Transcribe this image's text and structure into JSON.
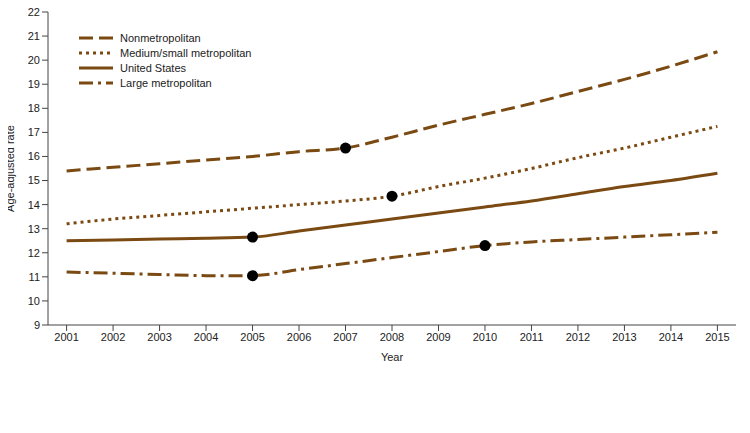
{
  "chart_data": {
    "type": "line",
    "x_label": "Year",
    "y_label": "Age-adjusted rate",
    "x": [
      2001,
      2002,
      2003,
      2004,
      2005,
      2006,
      2007,
      2008,
      2009,
      2010,
      2011,
      2012,
      2013,
      2014,
      2015
    ],
    "xlim": [
      2000.6,
      2015.4
    ],
    "xticks": [
      2001,
      2002,
      2003,
      2004,
      2005,
      2006,
      2007,
      2008,
      2009,
      2010,
      2011,
      2012,
      2013,
      2014,
      2015
    ],
    "ylim": [
      9,
      22
    ],
    "yticks": [
      9,
      10,
      11,
      12,
      13,
      14,
      15,
      16,
      17,
      18,
      19,
      20,
      21,
      22
    ],
    "grid": false,
    "legend": "upper left",
    "series": [
      {
        "name": "Nonmetropolitan",
        "color": "#7a4a12",
        "line_style": "dashed",
        "joinpoints": [
          2007
        ],
        "values": [
          15.4,
          15.55,
          15.7,
          15.85,
          16.0,
          16.2,
          16.35,
          16.8,
          17.3,
          17.75,
          18.2,
          18.7,
          19.2,
          19.75,
          20.35
        ]
      },
      {
        "name": "Medium/small metropolitan",
        "color": "#7a4a12",
        "line_style": "dotted",
        "joinpoints": [
          2008
        ],
        "values": [
          13.2,
          13.4,
          13.55,
          13.7,
          13.85,
          14.0,
          14.15,
          14.35,
          14.75,
          15.1,
          15.5,
          15.95,
          16.35,
          16.8,
          17.25
        ]
      },
      {
        "name": "United States",
        "color": "#7a4a12",
        "line_style": "solid",
        "joinpoints": [
          2005
        ],
        "values": [
          12.5,
          12.53,
          12.57,
          12.6,
          12.65,
          12.9,
          13.15,
          13.4,
          13.65,
          13.9,
          14.15,
          14.45,
          14.75,
          15.0,
          15.3
        ]
      },
      {
        "name": "Large metropolitan",
        "color": "#7a4a12",
        "line_style": "dashdot",
        "joinpoints": [
          2005,
          2010
        ],
        "values": [
          11.2,
          11.15,
          11.1,
          11.05,
          11.05,
          11.3,
          11.55,
          11.8,
          12.05,
          12.3,
          12.45,
          12.55,
          12.65,
          12.75,
          12.85
        ]
      }
    ]
  }
}
